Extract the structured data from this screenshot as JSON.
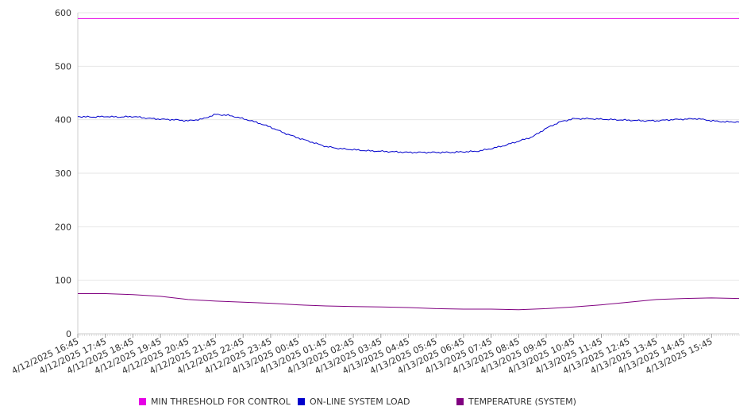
{
  "chart_data": {
    "type": "line",
    "ylim": [
      0,
      600
    ],
    "y_ticks": [
      "0",
      "100",
      "200",
      "300",
      "400",
      "500",
      "600"
    ],
    "x_tick_labels": [
      "4/12/2025 16:45",
      "4/12/2025 17:45",
      "4/12/2025 18:45",
      "4/12/2025 19:45",
      "4/12/2025 20:45",
      "4/12/2025 21:45",
      "4/12/2025 22:45",
      "4/12/2025 23:45",
      "4/13/2025 00:45",
      "4/13/2025 01:45",
      "4/13/2025 02:45",
      "4/13/2025 03:45",
      "4/13/2025 04:45",
      "4/13/2025 05:45",
      "4/13/2025 06:45",
      "4/13/2025 07:45",
      "4/13/2025 08:45",
      "4/13/2025 09:45",
      "4/13/2025 10:45",
      "4/13/2025 11:45",
      "4/13/2025 12:45",
      "4/13/2025 13:45",
      "4/13/2025 14:45",
      "4/13/2025 15:45"
    ],
    "x_range_hours": [
      0,
      24
    ],
    "grid": true,
    "legend_position": "bottom",
    "series": [
      {
        "name": "MIN THRESHOLD FOR CONTROL",
        "color": "#e600e6",
        "x": [
          0,
          24
        ],
        "values": [
          589,
          589
        ]
      },
      {
        "name": "ON-LINE SYSTEM LOAD",
        "color": "#0000cc",
        "x": [
          0,
          0.5,
          1,
          1.5,
          2,
          2.5,
          3,
          3.5,
          4,
          4.5,
          5,
          5.5,
          6,
          6.5,
          7,
          7.5,
          8,
          8.5,
          9,
          9.5,
          10,
          10.5,
          11,
          11.5,
          12,
          12.5,
          13,
          13.5,
          14,
          14.5,
          15,
          15.5,
          16,
          16.5,
          17,
          17.5,
          18,
          18.5,
          19,
          19.5,
          20,
          20.5,
          21,
          21.5,
          22,
          22.5,
          23,
          23.5,
          24
        ],
        "values": [
          406,
          405,
          406,
          405,
          406,
          403,
          401,
          400,
          398,
          401,
          410,
          408,
          402,
          395,
          386,
          375,
          366,
          358,
          350,
          346,
          344,
          342,
          341,
          340,
          339,
          339,
          339,
          339,
          340,
          341,
          346,
          352,
          360,
          368,
          384,
          396,
          402,
          402,
          401,
          400,
          399,
          398,
          398,
          400,
          401,
          402,
          398,
          396,
          396
        ]
      },
      {
        "name": "TEMPERATURE (SYSTEM)",
        "color": "#800080",
        "x": [
          0,
          1,
          2,
          3,
          4,
          5,
          6,
          7,
          8,
          9,
          10,
          11,
          12,
          13,
          14,
          15,
          16,
          17,
          18,
          19,
          20,
          21,
          22,
          23,
          24
        ],
        "values": [
          75,
          75,
          73,
          70,
          64,
          61,
          59,
          57,
          54,
          52,
          51,
          50,
          49,
          47,
          46,
          46,
          45,
          47,
          50,
          54,
          59,
          64,
          66,
          67,
          66
        ]
      }
    ]
  }
}
